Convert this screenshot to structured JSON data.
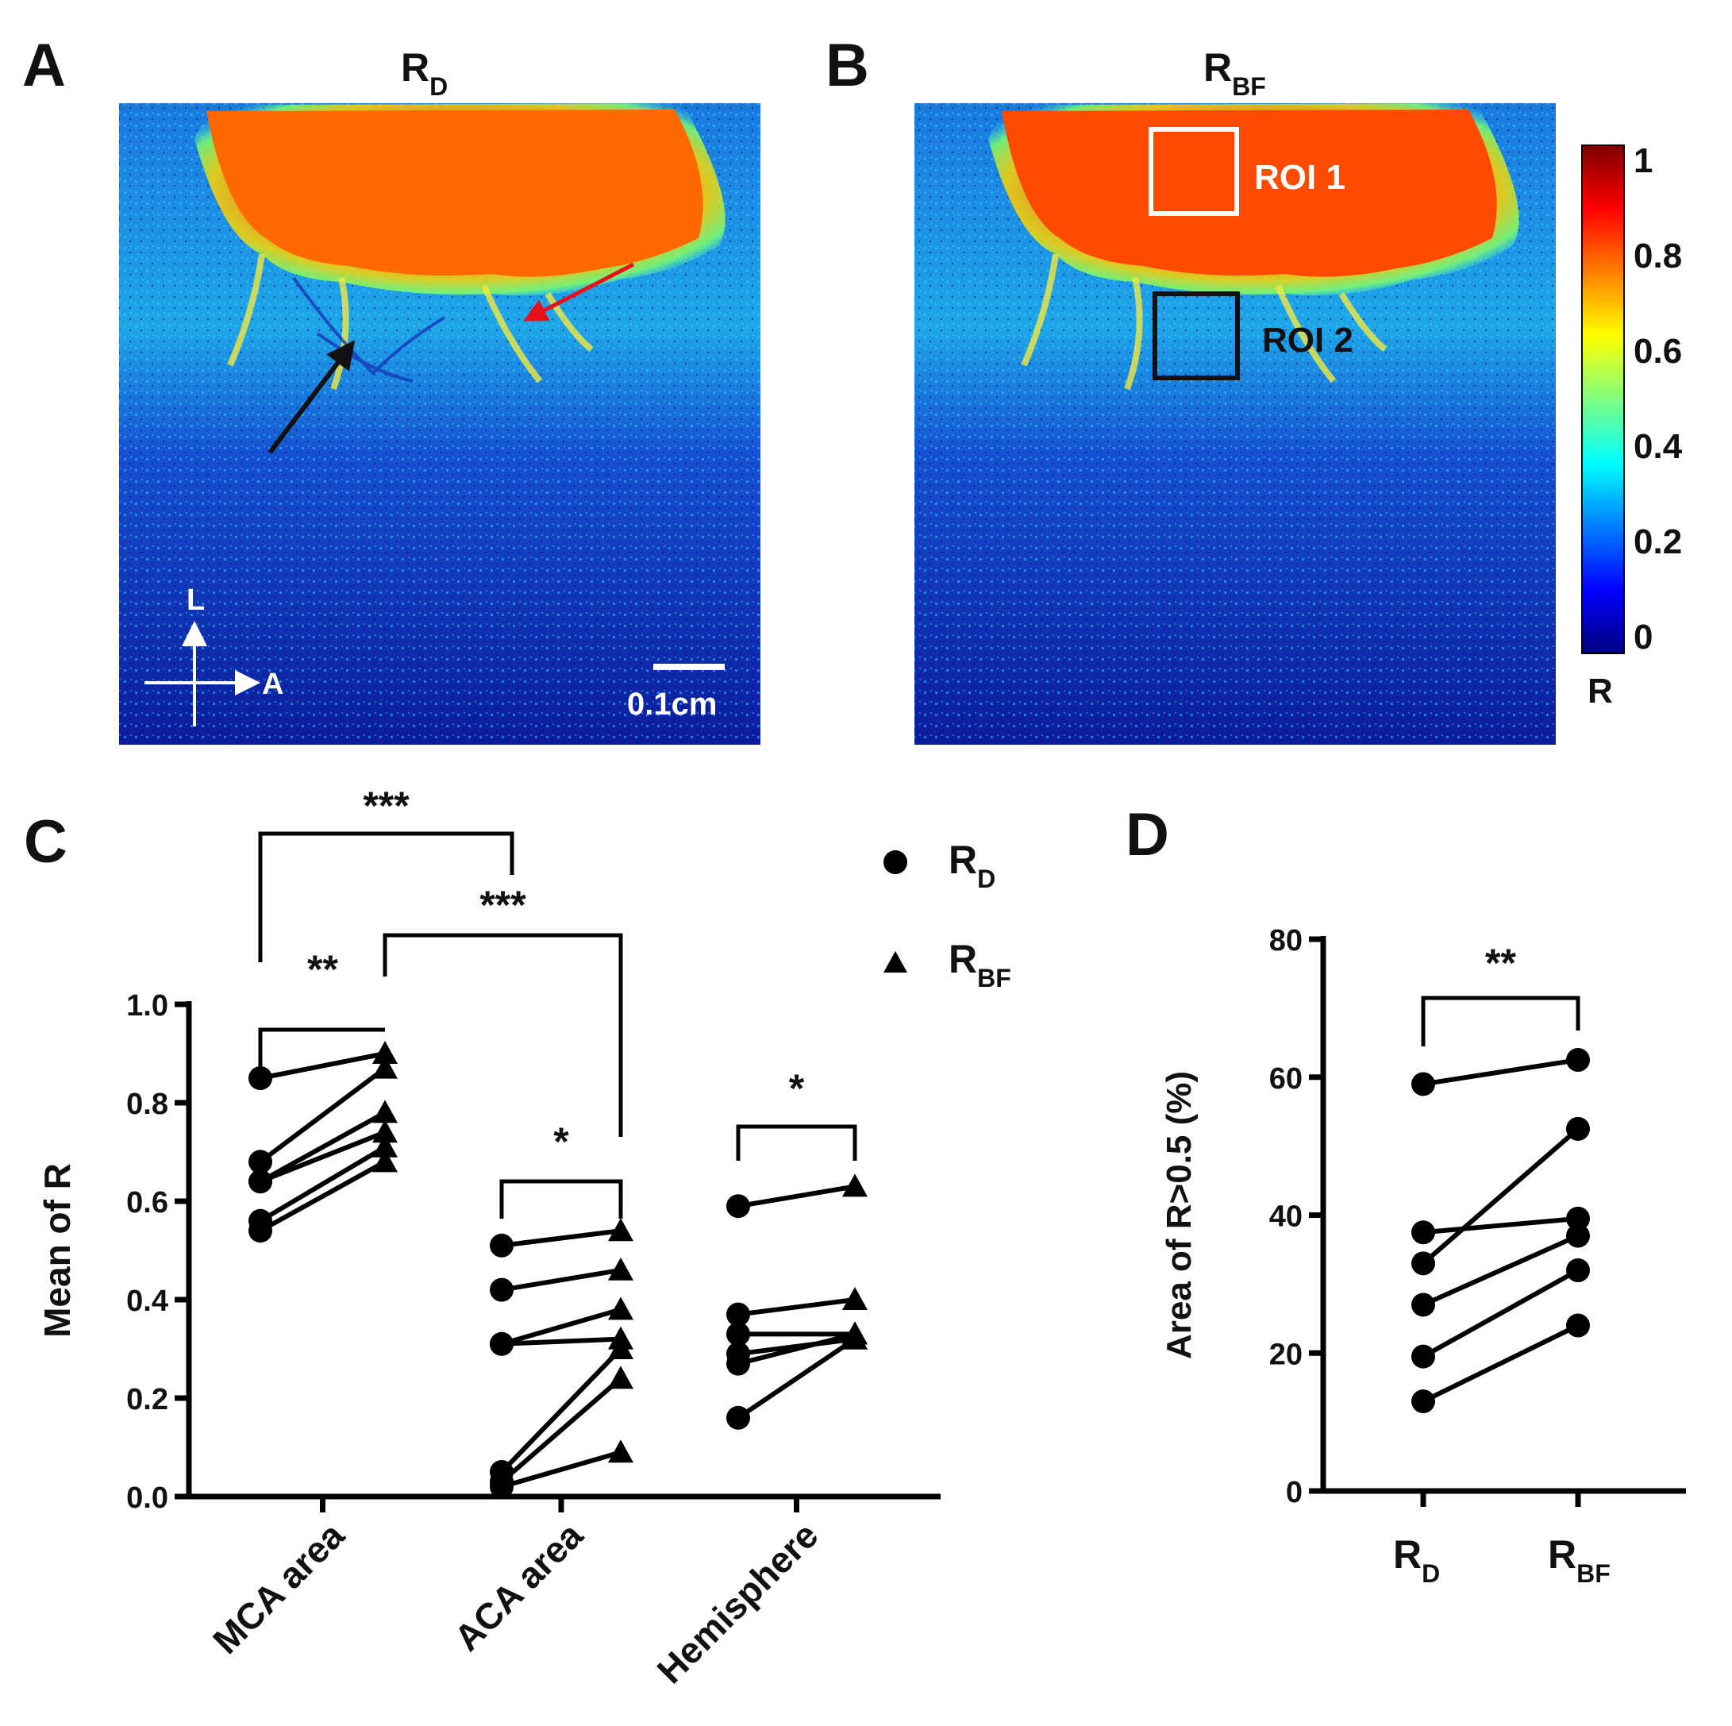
{
  "panels": {
    "a": {
      "label": "A",
      "title_main": "R",
      "title_sub": "D",
      "orientation": {
        "lateral": "L",
        "anterior": "A"
      },
      "scale_bar": "0.1cm"
    },
    "b": {
      "label": "B",
      "title_main": "R",
      "title_sub": "BF",
      "roi1": "ROI  1",
      "roi2": "ROI 2"
    },
    "c": {
      "label": "C"
    },
    "d": {
      "label": "D"
    }
  },
  "colorbar": {
    "ticks": [
      "1",
      "0.8",
      "0.6",
      "0.4",
      "0.2",
      "0"
    ],
    "label": "R",
    "colors": [
      "#7f0000",
      "#ff0000",
      "#ff7f00",
      "#ffff00",
      "#7fff7f",
      "#00ffff",
      "#007fff",
      "#0000ff",
      "#00007f"
    ]
  },
  "legend": [
    {
      "marker": "circle",
      "main": "R",
      "sub": "D"
    },
    {
      "marker": "triangle",
      "main": "R",
      "sub": "BF"
    }
  ],
  "chart_data": [
    {
      "type": "scatter",
      "panel": "C",
      "title": "",
      "ylabel": "Mean of R",
      "ylim": [
        0,
        1.0
      ],
      "yticks": [
        "0.0",
        "0.2",
        "0.4",
        "0.6",
        "0.8",
        "1.0"
      ],
      "categories": [
        "MCA area",
        "ACA area",
        "Hemisphere"
      ],
      "series": [
        {
          "name": "R_D",
          "marker": "circle"
        },
        {
          "name": "R_BF",
          "marker": "triangle"
        }
      ],
      "paired_data": [
        {
          "category": "MCA area",
          "R_D": [
            0.85,
            0.68,
            0.64,
            0.64,
            0.56,
            0.54
          ],
          "R_BF": [
            0.9,
            0.87,
            0.74,
            0.78,
            0.71,
            0.68
          ]
        },
        {
          "category": "ACA area",
          "R_D": [
            0.51,
            0.42,
            0.31,
            0.31,
            0.05,
            0.03,
            0.02
          ],
          "R_BF": [
            0.54,
            0.46,
            0.38,
            0.32,
            0.3,
            0.24,
            0.09
          ]
        },
        {
          "category": "Hemisphere",
          "R_D": [
            0.59,
            0.37,
            0.33,
            0.29,
            0.27,
            0.16
          ],
          "R_BF": [
            0.63,
            0.4,
            0.33,
            0.32,
            0.33,
            0.32
          ]
        }
      ],
      "significance": [
        {
          "between": "MCA area R_D vs R_BF",
          "stars": "**"
        },
        {
          "between": "ACA area R_D vs R_BF",
          "stars": "*"
        },
        {
          "between": "Hemisphere R_D vs R_BF",
          "stars": "*"
        },
        {
          "between": "MCA area R_D vs ACA area R_D",
          "stars": "***"
        },
        {
          "between": "MCA area R_BF vs ACA area R_BF",
          "stars": "***"
        }
      ]
    },
    {
      "type": "scatter",
      "panel": "D",
      "title": "",
      "ylabel": "Area of R>0.5 (%)",
      "ylim": [
        0,
        80
      ],
      "yticks": [
        "0",
        "20",
        "40",
        "60",
        "80"
      ],
      "categories": [
        {
          "main": "R",
          "sub": "D"
        },
        {
          "main": "R",
          "sub": "BF"
        }
      ],
      "pairs": [
        [
          59,
          62.5
        ],
        [
          37.5,
          39.5
        ],
        [
          33,
          52.5
        ],
        [
          27,
          37
        ],
        [
          19.5,
          32
        ],
        [
          13,
          24
        ]
      ],
      "significance": [
        {
          "between": "R_D vs R_BF",
          "stars": "**"
        }
      ]
    }
  ]
}
